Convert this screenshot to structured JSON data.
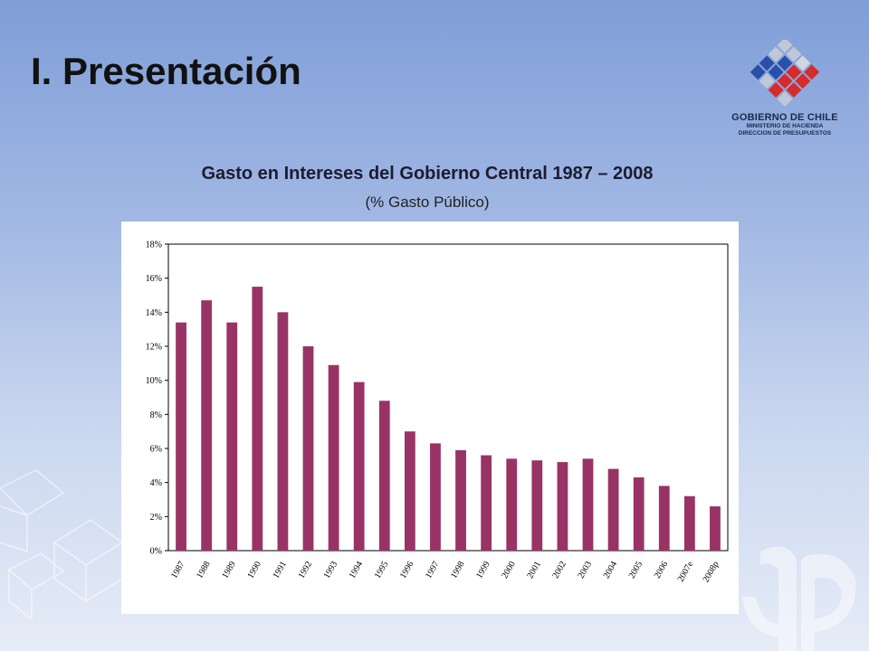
{
  "slide": {
    "title": "I. Presentación"
  },
  "logo": {
    "line1": "GOBIERNO DE CHILE",
    "line2": "MINISTERIO DE HACIENDA",
    "line3": "DIRECCION DE PRESUPUESTOS"
  },
  "chart_data": {
    "type": "bar",
    "title": "Gasto en Intereses del Gobierno Central 1987 – 2008",
    "subtitle": "(% Gasto Público)",
    "xlabel": "",
    "ylabel": "",
    "categories": [
      "1987",
      "1988",
      "1989",
      "1990",
      "1991",
      "1992",
      "1993",
      "1994",
      "1995",
      "1996",
      "1997",
      "1998",
      "1999",
      "2000",
      "2001",
      "2002",
      "2003",
      "2004",
      "2005",
      "2006",
      "2007e",
      "2008p"
    ],
    "values": [
      13.4,
      14.7,
      13.4,
      15.5,
      14.0,
      12.0,
      10.9,
      9.9,
      8.8,
      7.0,
      6.3,
      5.9,
      5.6,
      5.4,
      5.3,
      5.2,
      5.4,
      4.8,
      4.3,
      3.8,
      3.2,
      2.6
    ],
    "ylim": [
      0,
      18
    ],
    "yticks": [
      0,
      2,
      4,
      6,
      8,
      10,
      12,
      14,
      16,
      18
    ],
    "ytick_labels": [
      "0%",
      "2%",
      "4%",
      "6%",
      "8%",
      "10%",
      "12%",
      "14%",
      "16%",
      "18%"
    ],
    "grid": false,
    "bar_color": "#993366"
  }
}
